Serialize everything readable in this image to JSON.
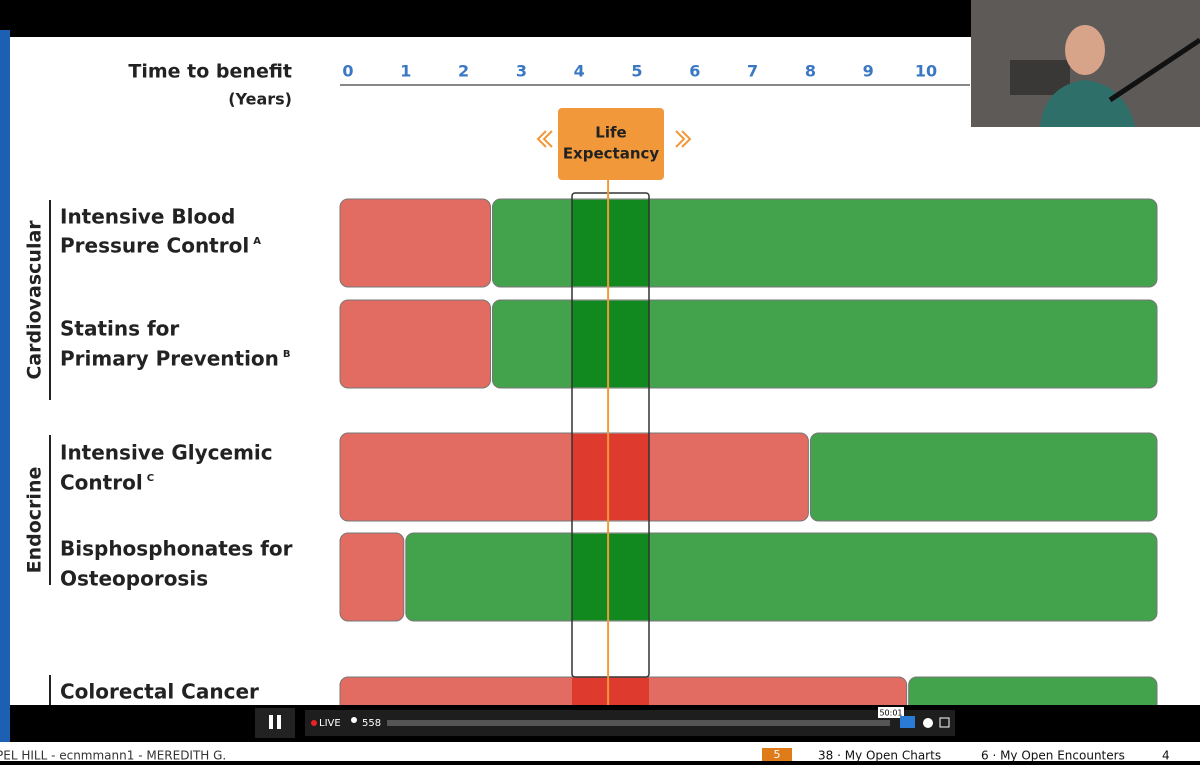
{
  "header": {
    "title": "Time to benefit",
    "unit": "(Years)",
    "ticks": [
      0,
      1,
      2,
      3,
      4,
      5,
      6,
      7,
      8,
      9,
      10
    ]
  },
  "life_expectancy": {
    "label_lines": [
      "Life",
      "Expectancy"
    ],
    "years": 4.5
  },
  "groups": [
    {
      "label": "Cardiovascular",
      "rows": [
        {
          "label_lines": [
            "Intensive Blood",
            "Pressure Control"
          ],
          "note": "A",
          "benefit_years": 2.5
        },
        {
          "label_lines": [
            "Statins for",
            "Primary Prevention"
          ],
          "note": "B",
          "benefit_years": 2.5
        }
      ]
    },
    {
      "label": "Endocrine",
      "rows": [
        {
          "label_lines": [
            "Intensive Glycemic",
            "Control"
          ],
          "note": "C",
          "benefit_years": 8
        },
        {
          "label_lines": [
            "Bisphosphonates for",
            "Osteoporosis"
          ],
          "benefit_years": 1
        }
      ]
    },
    {
      "rows": [
        {
          "label_lines": [
            "Colorectal Cancer"
          ],
          "benefit_years": 9.7
        }
      ]
    }
  ],
  "player": {
    "status": "LIVE",
    "viewers": 558,
    "time": "50:01"
  },
  "taskbar": {
    "user": "PEL HILL - ecnmmann1 - MEREDITH G.",
    "badge": 5,
    "charts": "38 · My Open Charts",
    "encounters": "6 · My Open Encounters",
    "mail": 4
  }
}
